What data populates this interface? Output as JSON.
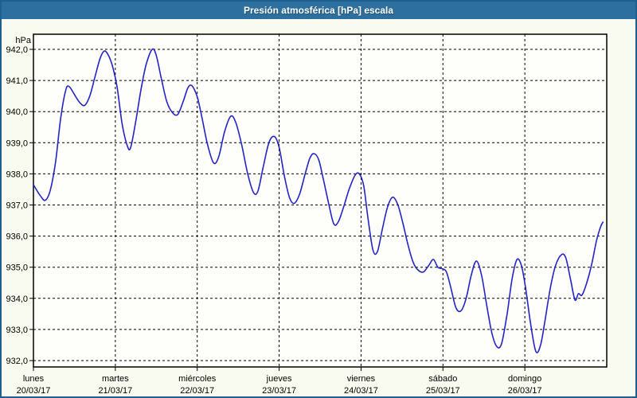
{
  "title_bar": {
    "label": "Presión atmosférica [hPa] escala"
  },
  "colors": {
    "titlebar_bg": "#2d6f9f",
    "titlebar_text": "#ffffff",
    "window_border": "#1f6090",
    "window_bg": "#fafbf0",
    "plot_bg": "#fefefa",
    "grid": "#000000",
    "axis_text": "#000000",
    "line": "#2323c8"
  },
  "chart_data": {
    "type": "line",
    "title": "Presión atmosférica [hPa] escala",
    "xlabel": "",
    "ylabel": "hPa",
    "ylim": [
      932,
      942
    ],
    "grid": "dashed",
    "legend_position": "none",
    "y_ticks": [
      {
        "value": 942,
        "label": "942,0"
      },
      {
        "value": 941,
        "label": "941,0"
      },
      {
        "value": 940,
        "label": "940,0"
      },
      {
        "value": 939,
        "label": "939,0"
      },
      {
        "value": 938,
        "label": "938,0"
      },
      {
        "value": 937,
        "label": "937,0"
      },
      {
        "value": 936,
        "label": "936,0"
      },
      {
        "value": 935,
        "label": "935,0"
      },
      {
        "value": 934,
        "label": "934,0"
      },
      {
        "value": 933,
        "label": "933,0"
      },
      {
        "value": 932,
        "label": "932,0"
      }
    ],
    "x_days": [
      {
        "name": "lunes",
        "date": "20/03/17"
      },
      {
        "name": "martes",
        "date": "21/03/17"
      },
      {
        "name": "miércoles",
        "date": "22/03/17"
      },
      {
        "name": "jueves",
        "date": "23/03/17"
      },
      {
        "name": "viernes",
        "date": "24/03/17"
      },
      {
        "name": "sábado",
        "date": "25/03/17"
      },
      {
        "name": "domingo",
        "date": "26/03/17"
      }
    ],
    "x_hours_total": 168,
    "series": [
      {
        "name": "Presión atmosférica [hPa]",
        "color": "#2323c8",
        "points": [
          [
            0,
            937.65
          ],
          [
            2,
            937.3
          ],
          [
            3.5,
            937.15
          ],
          [
            5,
            937.5
          ],
          [
            6.5,
            938.4
          ],
          [
            8,
            939.8
          ],
          [
            9.5,
            940.7
          ],
          [
            10.5,
            940.8
          ],
          [
            12,
            940.55
          ],
          [
            13.5,
            940.3
          ],
          [
            15,
            940.2
          ],
          [
            16.5,
            940.5
          ],
          [
            18,
            941.1
          ],
          [
            19.5,
            941.7
          ],
          [
            20.8,
            941.95
          ],
          [
            22,
            941.8
          ],
          [
            23.2,
            941.45
          ],
          [
            24.5,
            940.8
          ],
          [
            26,
            939.6
          ],
          [
            27.5,
            938.9
          ],
          [
            28.5,
            938.85
          ],
          [
            30,
            939.7
          ],
          [
            31.5,
            940.7
          ],
          [
            33,
            941.5
          ],
          [
            34.8,
            942.0
          ],
          [
            36,
            941.8
          ],
          [
            37.5,
            941.05
          ],
          [
            39,
            940.35
          ],
          [
            40.5,
            940.0
          ],
          [
            42.2,
            939.9
          ],
          [
            43.8,
            940.3
          ],
          [
            45.2,
            940.75
          ],
          [
            46.2,
            940.85
          ],
          [
            47.2,
            940.7
          ],
          [
            48.2,
            940.4
          ],
          [
            49.5,
            939.75
          ],
          [
            51,
            938.95
          ],
          [
            52.8,
            938.35
          ],
          [
            54.3,
            938.55
          ],
          [
            56,
            939.35
          ],
          [
            57.8,
            939.85
          ],
          [
            59.3,
            939.65
          ],
          [
            61,
            938.95
          ],
          [
            62.8,
            938.0
          ],
          [
            64.5,
            937.4
          ],
          [
            65.8,
            937.45
          ],
          [
            67.3,
            938.2
          ],
          [
            69,
            939.0
          ],
          [
            70.6,
            939.2
          ],
          [
            72,
            938.85
          ],
          [
            73.5,
            937.95
          ],
          [
            75,
            937.25
          ],
          [
            76.4,
            937.05
          ],
          [
            78,
            937.35
          ],
          [
            79.5,
            937.95
          ],
          [
            81,
            938.5
          ],
          [
            82.2,
            938.65
          ],
          [
            83.6,
            938.45
          ],
          [
            85,
            937.8
          ],
          [
            86.5,
            937.05
          ],
          [
            88,
            936.4
          ],
          [
            89.3,
            936.45
          ],
          [
            90.8,
            936.9
          ],
          [
            92.5,
            937.5
          ],
          [
            94.2,
            937.95
          ],
          [
            95.5,
            938.0
          ],
          [
            96.8,
            937.6
          ],
          [
            98,
            936.6
          ],
          [
            99.5,
            935.55
          ],
          [
            100.8,
            935.5
          ],
          [
            102.2,
            936.2
          ],
          [
            103.8,
            936.95
          ],
          [
            105.3,
            937.25
          ],
          [
            106.8,
            937.0
          ],
          [
            108.3,
            936.4
          ],
          [
            109.8,
            935.7
          ],
          [
            111.3,
            935.15
          ],
          [
            112.8,
            934.9
          ],
          [
            114.3,
            934.85
          ],
          [
            115.8,
            935.05
          ],
          [
            117.2,
            935.25
          ],
          [
            118.5,
            935.0
          ],
          [
            119.8,
            934.95
          ],
          [
            121,
            934.85
          ],
          [
            122.3,
            934.35
          ],
          [
            123.8,
            933.7
          ],
          [
            125.3,
            933.6
          ],
          [
            126.8,
            934.0
          ],
          [
            128.3,
            934.75
          ],
          [
            129.8,
            935.2
          ],
          [
            131.3,
            934.75
          ],
          [
            132.8,
            933.8
          ],
          [
            134.3,
            932.9
          ],
          [
            135.8,
            932.45
          ],
          [
            137.2,
            932.55
          ],
          [
            138.8,
            933.5
          ],
          [
            140.3,
            934.65
          ],
          [
            141.7,
            935.25
          ],
          [
            143,
            935.05
          ],
          [
            144.2,
            934.35
          ],
          [
            145.6,
            933.25
          ],
          [
            147.2,
            932.3
          ],
          [
            148.6,
            932.5
          ],
          [
            150,
            933.35
          ],
          [
            151.5,
            934.35
          ],
          [
            153,
            935.05
          ],
          [
            154.7,
            935.4
          ],
          [
            156,
            935.3
          ],
          [
            157.4,
            934.6
          ],
          [
            158.7,
            933.95
          ],
          [
            159.7,
            934.15
          ],
          [
            160.7,
            934.1
          ],
          [
            162,
            934.45
          ],
          [
            163.5,
            935.05
          ],
          [
            165,
            935.85
          ],
          [
            166.2,
            936.3
          ],
          [
            166.9,
            936.45
          ]
        ]
      }
    ]
  }
}
